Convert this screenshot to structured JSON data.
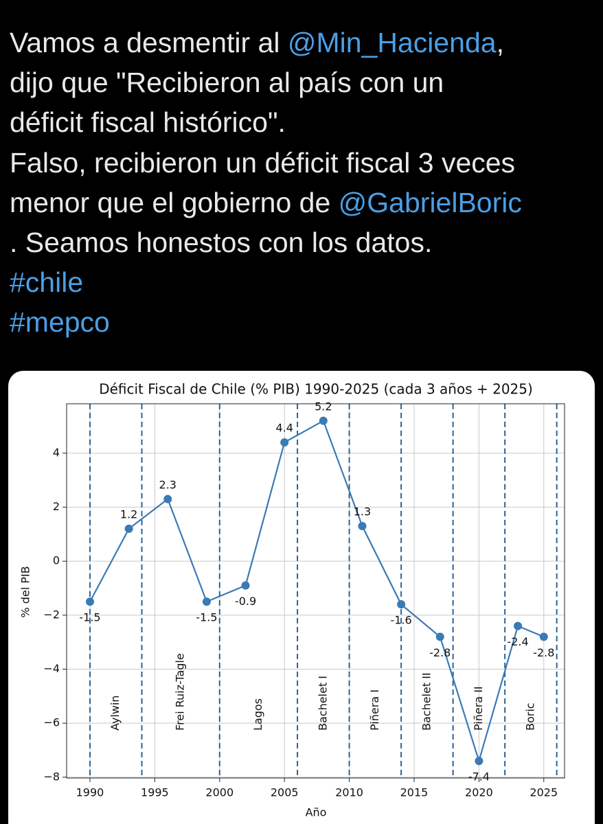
{
  "tweet": {
    "lines": [
      [
        {
          "text": "Vamos a desmentir al "
        },
        {
          "text": "@Min_Hacienda",
          "link": true
        },
        {
          "text": ","
        }
      ],
      [
        {
          "text": "dijo que \"Recibieron al país con un"
        }
      ],
      [
        {
          "text": "déficit fiscal histórico\"."
        }
      ],
      [
        {
          "text": "Falso, recibieron un déficit fiscal 3 veces"
        }
      ],
      [
        {
          "text": "menor que el gobierno de "
        },
        {
          "text": "@GabrielBoric",
          "link": true
        }
      ],
      [
        {
          "text": ". Seamos honestos con los datos."
        }
      ],
      [
        {
          "text": "#chile",
          "link": true
        }
      ],
      [
        {
          "text": "#mepco",
          "link": true
        }
      ]
    ]
  },
  "chart_data": {
    "type": "line",
    "title": "Déficit Fiscal de Chile (% PIB) 1990-2025 (cada 3 años + 2025)",
    "x_label": "Año",
    "y_label": "% del PIB",
    "x": [
      1990,
      1993,
      1996,
      1999,
      2002,
      2005,
      2008,
      2011,
      2014,
      2017,
      2020,
      2023,
      2025
    ],
    "values": [
      -1.5,
      1.2,
      2.3,
      -1.5,
      -0.9,
      4.4,
      5.2,
      1.3,
      -1.6,
      -2.8,
      -7.4,
      -2.4,
      -2.8
    ],
    "color": "#3a7ab5",
    "xlim": [
      1988.2,
      2026.6
    ],
    "ylim": [
      -8.03,
      5.83
    ],
    "xticks": [
      1990,
      1995,
      2000,
      2005,
      2010,
      2015,
      2020,
      2025
    ],
    "yticks": [
      {
        "value": -8,
        "label": "−8"
      },
      {
        "value": -6,
        "label": "−6"
      },
      {
        "value": -4,
        "label": "−4"
      },
      {
        "value": -2,
        "label": "−2"
      },
      0,
      2,
      4
    ],
    "grid": true,
    "vlines": [
      1990,
      1994,
      2000,
      2006,
      2010,
      2014,
      2018,
      2022,
      2026
    ],
    "vline_color": "#2a6496",
    "annotations": [
      {
        "text": "Aylwin",
        "x": 1992
      },
      {
        "text": "Frei Ruiz-Tagle",
        "x": 1997
      },
      {
        "text": "Lagos",
        "x": 2003
      },
      {
        "text": "Bachelet I",
        "x": 2008
      },
      {
        "text": "Piñera I",
        "x": 2012
      },
      {
        "text": "Bachelet II",
        "x": 2016
      },
      {
        "text": "Piñera II",
        "x": 2020
      },
      {
        "text": "Boric",
        "x": 2024
      }
    ]
  }
}
